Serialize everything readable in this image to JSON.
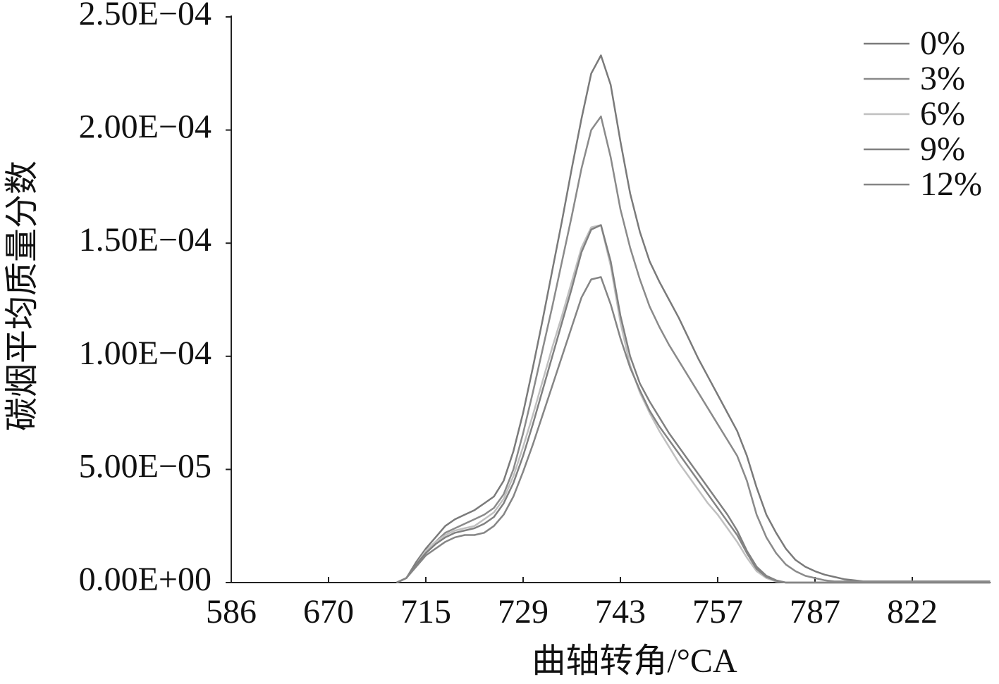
{
  "chart_data": {
    "type": "line",
    "x_label": "曲轴转角/°CA",
    "y_label": "碳烟平均质量分数",
    "categories": [
      "586",
      null,
      null,
      null,
      null,
      null,
      null,
      null,
      null,
      null,
      "670",
      null,
      null,
      null,
      null,
      null,
      null,
      null,
      null,
      null,
      "715",
      null,
      null,
      null,
      null,
      null,
      null,
      null,
      null,
      null,
      "729",
      null,
      null,
      null,
      null,
      null,
      null,
      null,
      null,
      null,
      "743",
      null,
      null,
      null,
      null,
      null,
      null,
      null,
      null,
      null,
      "757",
      null,
      null,
      null,
      null,
      null,
      null,
      null,
      null,
      null,
      "787",
      null,
      null,
      null,
      null,
      null,
      null,
      null,
      null,
      null,
      "822",
      null,
      null,
      null,
      null,
      null,
      null,
      null,
      null
    ],
    "ylim": [
      0,
      0.00025
    ],
    "yticks": [
      {
        "value": 0,
        "label": "0.00E+00"
      },
      {
        "value": 5e-05,
        "label": "5.00E−05"
      },
      {
        "value": 0.0001,
        "label": "1.00E−04"
      },
      {
        "value": 0.00015,
        "label": "1.50E−04"
      },
      {
        "value": 0.0002,
        "label": "2.00E−04"
      },
      {
        "value": 0.00025,
        "label": "2.50E−04"
      }
    ],
    "legend": "upper right",
    "series": [
      {
        "name": "0%",
        "color": "#7a7a7a",
        "values": [
          null,
          null,
          null,
          null,
          null,
          null,
          null,
          null,
          null,
          null,
          null,
          null,
          null,
          null,
          null,
          null,
          null,
          0,
          2e-06,
          9e-06,
          1.5e-05,
          2e-05,
          2.5e-05,
          2.8e-05,
          3e-05,
          3.2e-05,
          3.5e-05,
          3.8e-05,
          4.5e-05,
          5.8e-05,
          7.5e-05,
          9.5e-05,
          0.000116,
          0.000138,
          0.00016,
          0.000183,
          0.000205,
          0.000225,
          0.000233,
          0.00022,
          0.000195,
          0.000172,
          0.000155,
          0.000142,
          0.000133,
          0.000125,
          0.000117,
          0.000108,
          9.9e-05,
          9.1e-05,
          8.3e-05,
          7.5e-05,
          6.7e-05,
          5.6e-05,
          4.2e-05,
          3e-05,
          2.2e-05,
          1.5e-05,
          1e-05,
          7e-06,
          5e-06,
          3.5e-06,
          2.5e-06,
          1.5e-06,
          1e-06,
          5e-07,
          5e-07,
          5e-07,
          5e-07,
          5e-07,
          5e-07,
          5e-07,
          5e-07,
          5e-07,
          5e-07,
          5e-07,
          5e-07,
          5e-07,
          5e-07
        ]
      },
      {
        "name": "3%",
        "color": "#8a8a8a",
        "values": [
          null,
          null,
          null,
          null,
          null,
          null,
          null,
          null,
          null,
          null,
          null,
          null,
          null,
          null,
          null,
          null,
          null,
          0,
          2e-06,
          8e-06,
          1.4e-05,
          1.8e-05,
          2.2e-05,
          2.4e-05,
          2.6e-05,
          2.8e-05,
          3e-05,
          3.3e-05,
          3.9e-05,
          5e-05,
          6.6e-05,
          8.4e-05,
          0.000103,
          0.000122,
          0.000142,
          0.000162,
          0.000183,
          0.0002,
          0.000206,
          0.000188,
          0.000165,
          0.000148,
          0.000134,
          0.000122,
          0.000113,
          0.000105,
          9.8e-05,
          9.1e-05,
          8.4e-05,
          7.7e-05,
          7e-05,
          6.3e-05,
          5.6e-05,
          4.5e-05,
          3e-05,
          2e-05,
          1.3e-05,
          8e-06,
          5e-06,
          3e-06,
          2e-06,
          1e-06,
          5e-07,
          5e-07,
          5e-07,
          5e-07,
          5e-07,
          5e-07,
          5e-07,
          5e-07,
          5e-07,
          5e-07,
          5e-07,
          5e-07,
          5e-07,
          5e-07,
          5e-07,
          5e-07,
          5e-07
        ]
      },
      {
        "name": "6%",
        "color": "#c0c0c0",
        "values": [
          null,
          null,
          null,
          null,
          null,
          null,
          null,
          null,
          null,
          null,
          null,
          null,
          null,
          null,
          null,
          null,
          null,
          0,
          2e-06,
          8e-06,
          1.4e-05,
          1.8e-05,
          2.1e-05,
          2.3e-05,
          2.4e-05,
          2.5e-05,
          2.8e-05,
          3.1e-05,
          3.7e-05,
          4.7e-05,
          6e-05,
          7.4e-05,
          8.9e-05,
          0.000104,
          0.000118,
          0.000133,
          0.000148,
          0.000157,
          0.000158,
          0.00014,
          0.000115,
          9.6e-05,
          8.4e-05,
          7.5e-05,
          6.7e-05,
          6e-05,
          5.3e-05,
          4.7e-05,
          4.1e-05,
          3.5e-05,
          3e-05,
          2.4e-05,
          1.8e-05,
          1.1e-05,
          5e-06,
          2e-06,
          5e-07,
          0,
          0,
          0,
          0,
          0,
          0,
          0,
          0,
          0,
          0,
          0,
          0,
          0,
          0,
          0,
          0,
          0,
          0,
          0,
          0,
          0,
          0
        ]
      },
      {
        "name": "9%",
        "color": "#808080",
        "values": [
          null,
          null,
          null,
          null,
          null,
          null,
          null,
          null,
          null,
          null,
          null,
          null,
          null,
          null,
          null,
          null,
          null,
          0,
          2e-06,
          8e-06,
          1.3e-05,
          1.7e-05,
          2e-05,
          2.2e-05,
          2.3e-05,
          2.4e-05,
          2.6e-05,
          2.9e-05,
          3.5e-05,
          4.4e-05,
          5.6e-05,
          7e-05,
          8.5e-05,
          0.0001,
          0.000115,
          0.00013,
          0.000146,
          0.000156,
          0.000158,
          0.000142,
          0.000118,
          0.0001,
          8.8e-05,
          8e-05,
          7.3e-05,
          6.6e-05,
          6e-05,
          5.4e-05,
          4.8e-05,
          4.2e-05,
          3.6e-05,
          3e-05,
          2.3e-05,
          1.4e-05,
          7e-06,
          3e-06,
          1e-06,
          0,
          0,
          0,
          0,
          0,
          0,
          0,
          0,
          0,
          0,
          0,
          0,
          0,
          0,
          0,
          0,
          0,
          0,
          0,
          0,
          0,
          0
        ]
      },
      {
        "name": "12%",
        "color": "#858585",
        "values": [
          null,
          null,
          null,
          null,
          null,
          null,
          null,
          null,
          null,
          null,
          null,
          null,
          null,
          null,
          null,
          null,
          null,
          0,
          2e-06,
          7e-06,
          1.2e-05,
          1.5e-05,
          1.8e-05,
          2e-05,
          2.1e-05,
          2.1e-05,
          2.2e-05,
          2.5e-05,
          3e-05,
          3.8e-05,
          4.9e-05,
          6.1e-05,
          7.4e-05,
          8.7e-05,
          0.0001,
          0.000113,
          0.000126,
          0.000134,
          0.000135,
          0.000123,
          0.000108,
          9.5e-05,
          8.5e-05,
          7.6e-05,
          6.9e-05,
          6.3e-05,
          5.7e-05,
          5.1e-05,
          4.5e-05,
          3.9e-05,
          3.3e-05,
          2.7e-05,
          2.1e-05,
          1.3e-05,
          6e-06,
          2.5e-06,
          8e-07,
          0,
          0,
          0,
          0,
          0,
          0,
          0,
          0,
          0,
          0,
          0,
          0,
          0,
          0,
          0,
          0,
          0,
          0,
          0,
          0,
          0,
          0
        ]
      }
    ]
  }
}
